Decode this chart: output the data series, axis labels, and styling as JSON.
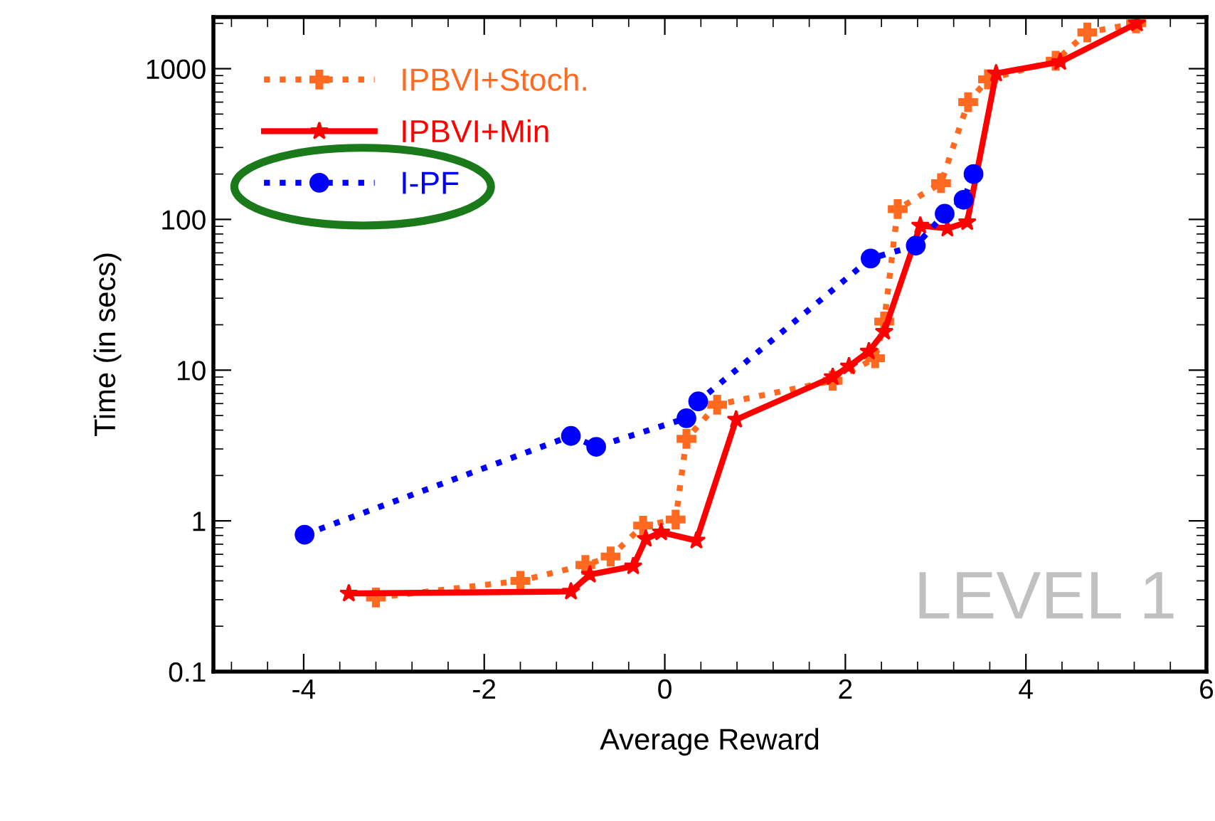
{
  "chart_data": {
    "type": "line",
    "xlabel": "Average Reward",
    "ylabel": "Time (in secs)",
    "xlim": [
      -5,
      6
    ],
    "xticks": [
      -4,
      -2,
      0,
      2,
      4,
      6
    ],
    "ylim": [
      0.1,
      2200
    ],
    "yticks": [
      0.1,
      1,
      10,
      100,
      1000
    ],
    "log": "y",
    "legend": "top left",
    "grid": false,
    "annotations": [
      "LEVEL 1"
    ],
    "series": [
      {
        "name": "IPBVI+Stoch.",
        "color": "#ff6a20",
        "marker": "cross",
        "line_style": "dotted",
        "x": [
          -3.2,
          -1.6,
          -0.88,
          -0.6,
          -0.24,
          0.12,
          0.24,
          0.58,
          1.86,
          2.33,
          2.43,
          2.58,
          3.06,
          3.36,
          3.58,
          4.33,
          4.68,
          5.22
        ],
        "values": [
          0.31,
          0.4,
          0.51,
          0.58,
          0.93,
          1.02,
          3.5,
          5.9,
          8.5,
          12,
          21,
          117,
          174,
          600,
          850,
          1130,
          1740,
          2000
        ]
      },
      {
        "name": "IPBVI+Min",
        "color": "#ff0000",
        "marker": "star",
        "line_style": "solid",
        "x": [
          -3.5,
          -1.04,
          -0.83,
          -0.35,
          -0.21,
          -0.04,
          0.35,
          0.79,
          1.86,
          2.04,
          2.26,
          2.43,
          2.83,
          3.13,
          3.35,
          3.67,
          4.38,
          5.23
        ],
        "values": [
          0.33,
          0.34,
          0.44,
          0.5,
          0.76,
          0.84,
          0.74,
          4.7,
          9.0,
          10.6,
          13.3,
          18,
          91,
          87,
          96,
          930,
          1110,
          2000
        ]
      },
      {
        "name": "I-PF",
        "color": "#0000ff",
        "marker": "circle",
        "line_style": "dotted",
        "x": [
          -3.99,
          -1.04,
          -0.76,
          0.24,
          0.37,
          2.28,
          2.78,
          3.1,
          3.31,
          3.42
        ],
        "values": [
          0.81,
          3.66,
          3.1,
          4.8,
          6.2,
          55,
          67,
          109,
          135,
          200
        ]
      }
    ]
  }
}
